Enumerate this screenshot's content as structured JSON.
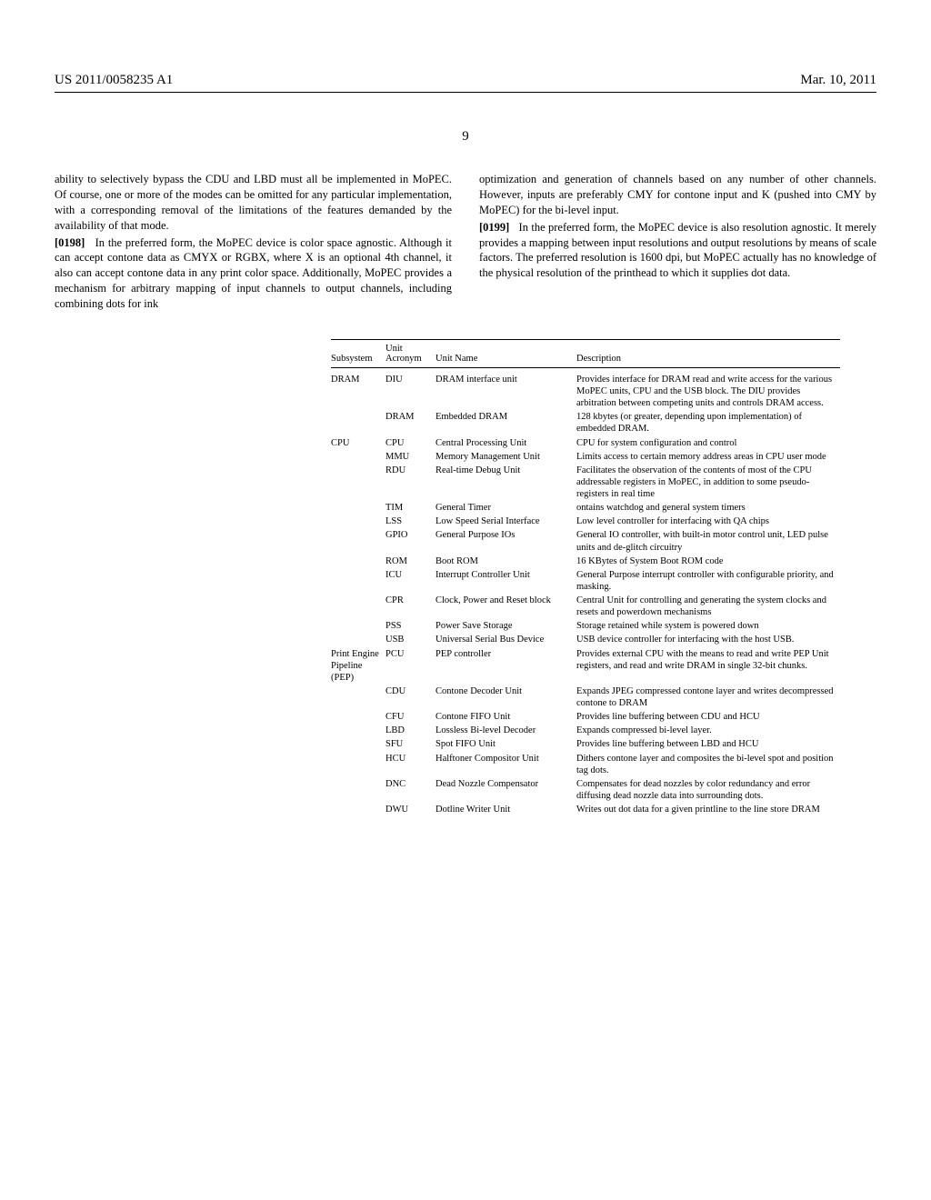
{
  "header": {
    "pub_number": "US 2011/0058235 A1",
    "pub_date": "Mar. 10, 2011"
  },
  "page_number": "9",
  "paragraphs": {
    "p1": "ability to selectively bypass the CDU and LBD must all be implemented in MoPEC. Of course, one or more of the modes can be omitted for any particular implementation, with a corresponding removal of the limitations of the features demanded by the availability of that mode.",
    "p2_num": "[0198]",
    "p2": "In the preferred form, the MoPEC device is color space agnostic. Although it can accept contone data as CMYX or RGBX, where X is an optional 4th channel, it also can accept contone data in any print color space. Additionally, MoPEC provides a mechanism for arbitrary mapping of input channels to output channels, including combining dots for ink",
    "p3": "optimization and generation of channels based on any number of other channels. However, inputs are preferably CMY for contone input and K (pushed into CMY by MoPEC) for the bi-level input.",
    "p4_num": "[0199]",
    "p4": "In the preferred form, the MoPEC device is also resolution agnostic. It merely provides a mapping between input resolutions and output resolutions by means of scale factors. The preferred resolution is 1600 dpi, but MoPEC actually has no knowledge of the physical resolution of the printhead to which it supplies dot data."
  },
  "table": {
    "headers": {
      "subsystem": "Subsystem",
      "acronym_top": "Unit",
      "acronym": "Acronym",
      "unit_name": "Unit Name",
      "description": "Description"
    },
    "rows": [
      {
        "sub": "DRAM",
        "acr": "DIU",
        "name": "DRAM interface unit",
        "desc": "Provides interface for DRAM read and write access for the various MoPEC units, CPU and the USB block. The DIU provides arbitration between competing units and controls DRAM access."
      },
      {
        "sub": "",
        "acr": "DRAM",
        "name": "Embedded DRAM",
        "desc": "128 kbytes (or greater, depending upon implementation) of embedded DRAM."
      },
      {
        "sub": "CPU",
        "acr": "CPU",
        "name": "Central Processing Unit",
        "desc": "CPU for system configuration and control"
      },
      {
        "sub": "",
        "acr": "MMU",
        "name": "Memory Management Unit",
        "desc": "Limits access to certain memory address areas in CPU user mode"
      },
      {
        "sub": "",
        "acr": "RDU",
        "name": "Real-time Debug Unit",
        "desc": "Facilitates the observation of the contents of most of the CPU addressable registers in MoPEC, in addition to some pseudo-registers in real time"
      },
      {
        "sub": "",
        "acr": "TIM",
        "name": "General Timer",
        "desc": "ontains watchdog and general system timers"
      },
      {
        "sub": "",
        "acr": "LSS",
        "name": "Low Speed Serial Interface",
        "desc": "Low level controller for interfacing with QA chips"
      },
      {
        "sub": "",
        "acr": "GPIO",
        "name": "General Purpose IOs",
        "desc": "General IO controller, with built-in motor control unit, LED pulse units and de-glitch circuitry"
      },
      {
        "sub": "",
        "acr": "ROM",
        "name": "Boot ROM",
        "desc": "16 KBytes of System Boot ROM code"
      },
      {
        "sub": "",
        "acr": "ICU",
        "name": "Interrupt Controller Unit",
        "desc": "General Purpose interrupt controller with configurable priority, and masking."
      },
      {
        "sub": "",
        "acr": "CPR",
        "name": "Clock, Power and Reset block",
        "desc": "Central Unit for controlling and generating the system clocks and resets and powerdown mechanisms"
      },
      {
        "sub": "",
        "acr": "PSS",
        "name": "Power Save Storage",
        "desc": "Storage retained while system is powered down"
      },
      {
        "sub": "",
        "acr": "USB",
        "name": "Universal Serial Bus Device",
        "desc": "USB device controller for interfacing with the host USB."
      },
      {
        "sub": "Print Engine Pipeline (PEP)",
        "acr": "PCU",
        "name": "PEP controller",
        "desc": "Provides external CPU with the means to read and write PEP Unit registers, and read and write DRAM in single 32-bit chunks."
      },
      {
        "sub": "",
        "acr": "CDU",
        "name": "Contone Decoder Unit",
        "desc": "Expands JPEG compressed contone layer and writes decompressed contone to DRAM"
      },
      {
        "sub": "",
        "acr": "CFU",
        "name": "Contone FIFO Unit",
        "desc": "Provides line buffering between CDU and HCU"
      },
      {
        "sub": "",
        "acr": "LBD",
        "name": "Lossless Bi-level Decoder",
        "desc": "Expands compressed bi-level layer."
      },
      {
        "sub": "",
        "acr": "SFU",
        "name": "Spot FIFO Unit",
        "desc": "Provides line buffering between LBD and HCU"
      },
      {
        "sub": "",
        "acr": "HCU",
        "name": "Halftoner Compositor Unit",
        "desc": "Dithers contone layer and composites the bi-level spot and position tag dots."
      },
      {
        "sub": "",
        "acr": "DNC",
        "name": "Dead Nozzle Compensator",
        "desc": "Compensates for dead nozzles by color redundancy and error diffusing dead nozzle data into surrounding dots."
      },
      {
        "sub": "",
        "acr": "DWU",
        "name": "Dotline Writer Unit",
        "desc": "Writes out dot data for a given printline to the line store DRAM"
      }
    ]
  }
}
